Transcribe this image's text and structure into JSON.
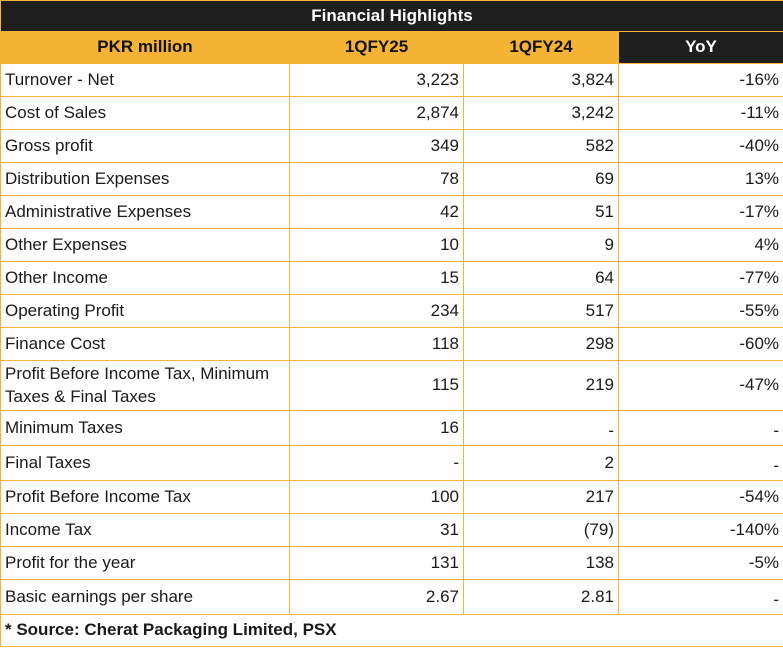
{
  "title": "Financial Highlights",
  "headers": {
    "label": "PKR million",
    "col1": "1QFY25",
    "col2": "1QFY24",
    "col3": "YoY"
  },
  "rows": [
    {
      "label": "Turnover - Net",
      "v1": "3,223",
      "v2": "3,824",
      "yoy": "-16%"
    },
    {
      "label": "Cost of Sales",
      "v1": "2,874",
      "v2": "3,242",
      "yoy": "-11%"
    },
    {
      "label": "Gross profit",
      "v1": "349",
      "v2": "582",
      "yoy": "-40%"
    },
    {
      "label": "Distribution Expenses",
      "v1": "78",
      "v2": "69",
      "yoy": "13%"
    },
    {
      "label": "Administrative Expenses",
      "v1": "42",
      "v2": "51",
      "yoy": "-17%"
    },
    {
      "label": "Other Expenses",
      "v1": "10",
      "v2": "9",
      "yoy": "4%"
    },
    {
      "label": "Other Income",
      "v1": "15",
      "v2": "64",
      "yoy": "-77%"
    },
    {
      "label": "Operating Profit",
      "v1": "234",
      "v2": "517",
      "yoy": "-55%"
    },
    {
      "label": "Finance Cost",
      "v1": "118",
      "v2": "298",
      "yoy": "-60%"
    },
    {
      "label": "Profit Before Income Tax, Minimum Taxes & Final Taxes",
      "v1": "115",
      "v2": "219",
      "yoy": "-47%"
    },
    {
      "label": "Minimum Taxes",
      "v1": "16",
      "v2": "-",
      "yoy": "-"
    },
    {
      "label": "Final Taxes",
      "v1": "-",
      "v2": "2",
      "yoy": "-"
    },
    {
      "label": "Profit Before Income Tax",
      "v1": "100",
      "v2": "217",
      "yoy": "-54%"
    },
    {
      "label": "Income Tax",
      "v1": "31",
      "v2": "(79)",
      "yoy": "-140%"
    },
    {
      "label": "Profit for the year",
      "v1": "131",
      "v2": "138",
      "yoy": "-5%"
    },
    {
      "label": "Basic earnings per share",
      "v1": "2.67",
      "v2": "2.81",
      "yoy": "-"
    }
  ],
  "source": "* Source: Cherat Packaging Limited, PSX",
  "colors": {
    "border": "#F5B335",
    "header_accent": "#F5B335",
    "dark": "#1f1f1f"
  }
}
